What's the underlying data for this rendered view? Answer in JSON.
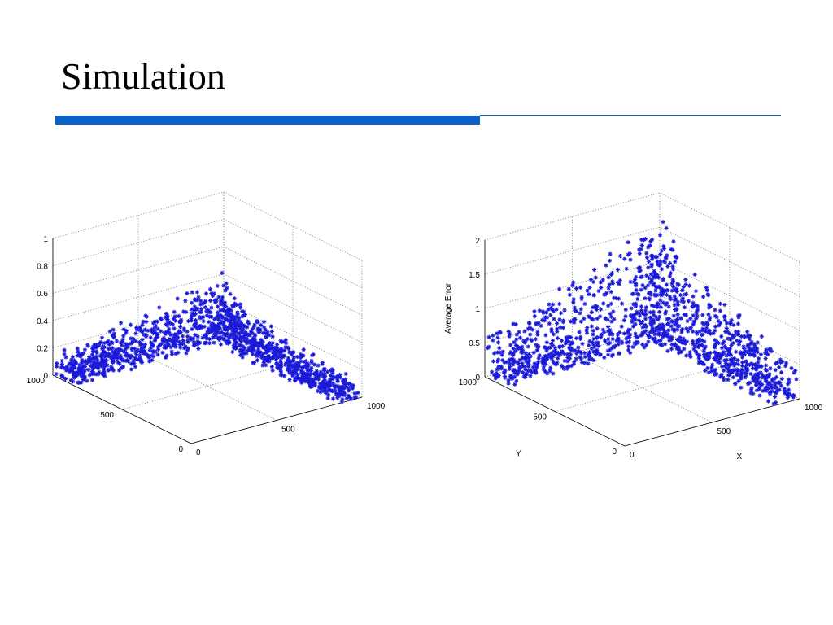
{
  "slide": {
    "title": "Simulation"
  },
  "colors": {
    "accent": "#0a62c9",
    "marker": "#1a1ad8"
  },
  "chart_data": [
    {
      "type": "scatter",
      "dimensions": 3,
      "marker": "*",
      "title": "",
      "xlabel": "",
      "ylabel": "",
      "zlabel": "",
      "xlim": [
        0,
        1000
      ],
      "ylim": [
        0,
        1000
      ],
      "zlim": [
        0,
        1
      ],
      "x_ticks": [
        "0",
        "500",
        "1000"
      ],
      "y_ticks": [
        "0",
        "500",
        "1000"
      ],
      "z_ticks": [
        "0",
        "0.2",
        "0.4",
        "0.6",
        "0.8",
        "1"
      ],
      "grid": true,
      "regions": [
        {
          "x": [
            0,
            1000
          ],
          "y": [
            850,
            1000
          ],
          "z": [
            0.0,
            0.42
          ]
        },
        {
          "x": [
            850,
            1000
          ],
          "y": [
            0,
            1000
          ],
          "z": [
            0.0,
            0.28
          ]
        }
      ]
    },
    {
      "type": "scatter",
      "dimensions": 3,
      "marker": "*",
      "title": "",
      "xlabel": "X",
      "ylabel": "Y",
      "zlabel": "Average Error",
      "xlim": [
        0,
        1000
      ],
      "ylim": [
        0,
        1000
      ],
      "zlim": [
        0,
        2
      ],
      "x_ticks": [
        "0",
        "500",
        "1000"
      ],
      "y_ticks": [
        "0",
        "500",
        "1000"
      ],
      "z_ticks": [
        "0",
        "0.5",
        "1",
        "1.5",
        "2"
      ],
      "grid": true,
      "regions": [
        {
          "x": [
            0,
            1000
          ],
          "y": [
            850,
            1000
          ],
          "z": [
            0.0,
            1.7
          ]
        },
        {
          "x": [
            850,
            1000
          ],
          "y": [
            0,
            1000
          ],
          "z": [
            0.0,
            1.4
          ]
        }
      ]
    }
  ]
}
